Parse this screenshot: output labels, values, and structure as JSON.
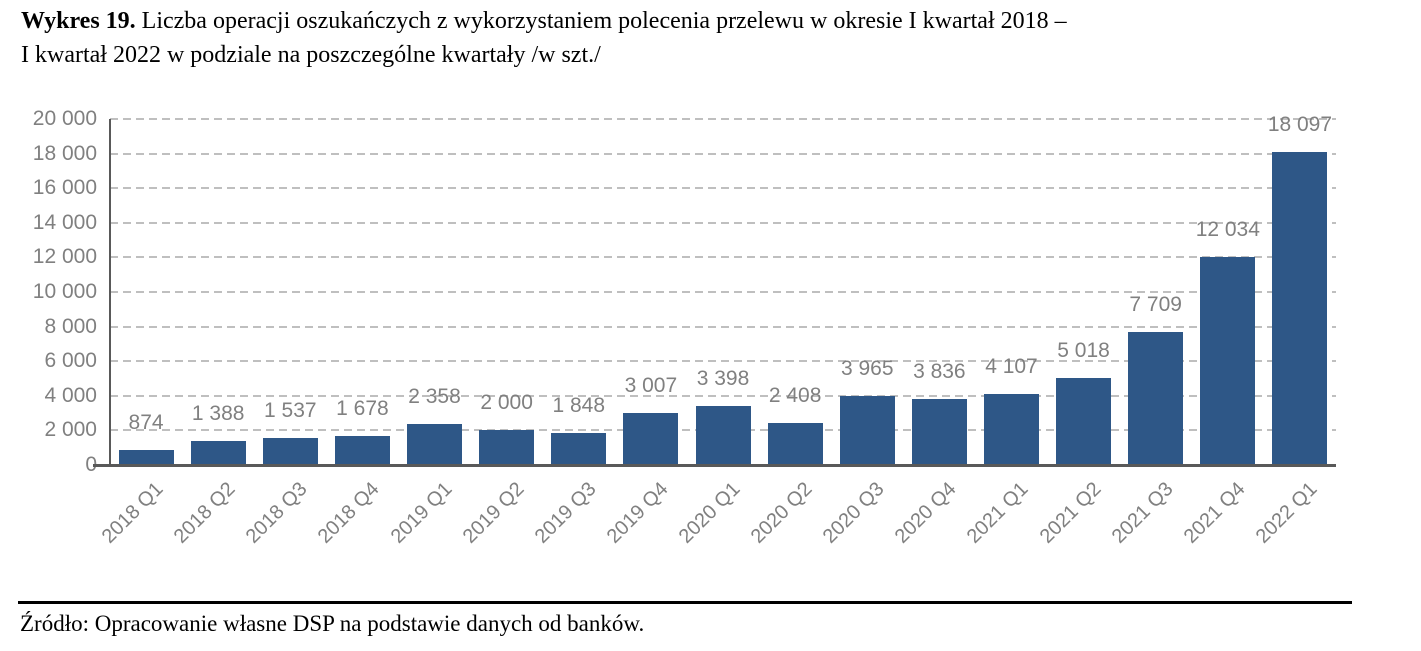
{
  "title": {
    "bold": "Wykres 19.",
    "line1_rest": " Liczba operacji oszukańczych z wykorzystaniem polecenia przelewu w okresie I kwartał 2018 –",
    "line2": "I kwartał 2022 w podziale na poszczególne kwartały /w szt./"
  },
  "source": "Źródło: Opracowanie własne DSP na podstawie danych od banków.",
  "chart_data": {
    "type": "bar",
    "categories": [
      "2018 Q1",
      "2018 Q2",
      "2018 Q3",
      "2018 Q4",
      "2019 Q1",
      "2019 Q2",
      "2019 Q3",
      "2019 Q4",
      "2020 Q1",
      "2020 Q2",
      "2020 Q3",
      "2020 Q4",
      "2021 Q1",
      "2021 Q2",
      "2021 Q3",
      "2021 Q4",
      "2022 Q1"
    ],
    "values": [
      874,
      1388,
      1537,
      1678,
      2358,
      2000,
      1848,
      3007,
      3398,
      2408,
      3965,
      3836,
      4107,
      5018,
      7709,
      12034,
      18097
    ],
    "value_labels": [
      "874",
      "1 388",
      "1 537",
      "1 678",
      "2 358",
      "2 000",
      "1 848",
      "3 007",
      "3 398",
      "2 408",
      "3 965",
      "3 836",
      "4 107",
      "5 018",
      "7 709",
      "12 034",
      "18 097"
    ],
    "title": "",
    "xlabel": "",
    "ylabel": "",
    "ylim": [
      0,
      20000
    ],
    "ytick_step": 2000,
    "ytick_labels": [
      "0",
      "2 000",
      "4 000",
      "6 000",
      "8 000",
      "10 000",
      "12 000",
      "14 000",
      "16 000",
      "18 000",
      "20 000"
    ],
    "grid": "horizontal-dashed",
    "legend": "none",
    "bar_color": "#2e5787",
    "grid_color": "#bfbfbf",
    "axis_color": "#595959",
    "label_color": "#808080"
  }
}
